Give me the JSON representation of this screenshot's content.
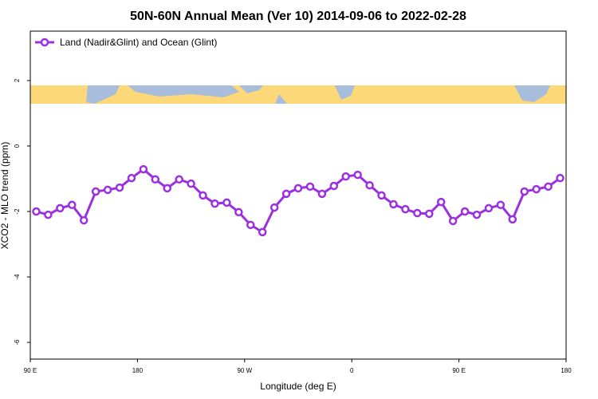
{
  "chart_data": {
    "type": "line",
    "title": "50N-60N Annual Mean (Ver 10)   2014-09-06 to 2022-02-28",
    "xlabel": "Longitude (deg E)",
    "ylabel": "XCO2 - MLO trend (ppm)",
    "x": [
      95,
      105,
      115,
      125,
      135,
      145,
      155,
      165,
      175,
      185,
      195,
      205,
      215,
      225,
      235,
      245,
      255,
      265,
      275,
      285,
      295,
      305,
      315,
      325,
      335,
      345,
      355,
      365,
      375,
      385,
      395,
      405,
      415,
      425,
      435,
      445,
      455,
      465,
      475,
      485,
      495,
      505,
      515,
      525,
      535
    ],
    "series": [
      {
        "name": "Land (Nadir&Glint) and Ocean (Glint)",
        "color": "#9b30e0",
        "values": [
          -2.0,
          -2.1,
          -1.9,
          -1.8,
          -2.27,
          -1.39,
          -1.34,
          -1.27,
          -0.98,
          -0.71,
          -1.02,
          -1.29,
          -1.02,
          -1.15,
          -1.51,
          -1.76,
          -1.73,
          -2.02,
          -2.41,
          -2.63,
          -1.88,
          -1.46,
          -1.29,
          -1.24,
          -1.46,
          -1.22,
          -0.93,
          -0.88,
          -1.2,
          -1.51,
          -1.78,
          -1.93,
          -2.05,
          -2.07,
          -1.71,
          -2.29,
          -2.0,
          -2.1,
          -1.9,
          -1.8,
          -2.24,
          -1.39,
          -1.32,
          -1.24,
          -0.98
        ]
      }
    ],
    "xlim": [
      90,
      540
    ],
    "xticks": [
      {
        "value": 90,
        "label": "90 E"
      },
      180,
      {
        "value": 270,
        "label": "90 W"
      },
      {
        "value": 360,
        "label": "0"
      },
      {
        "value": 450,
        "label": "90 E"
      },
      {
        "value": 540,
        "label": "180"
      }
    ],
    "ylim": [
      -6.51,
      3.51
    ],
    "yticks": [
      -6,
      -4,
      -2,
      0,
      2
    ],
    "legend": "top-left"
  }
}
